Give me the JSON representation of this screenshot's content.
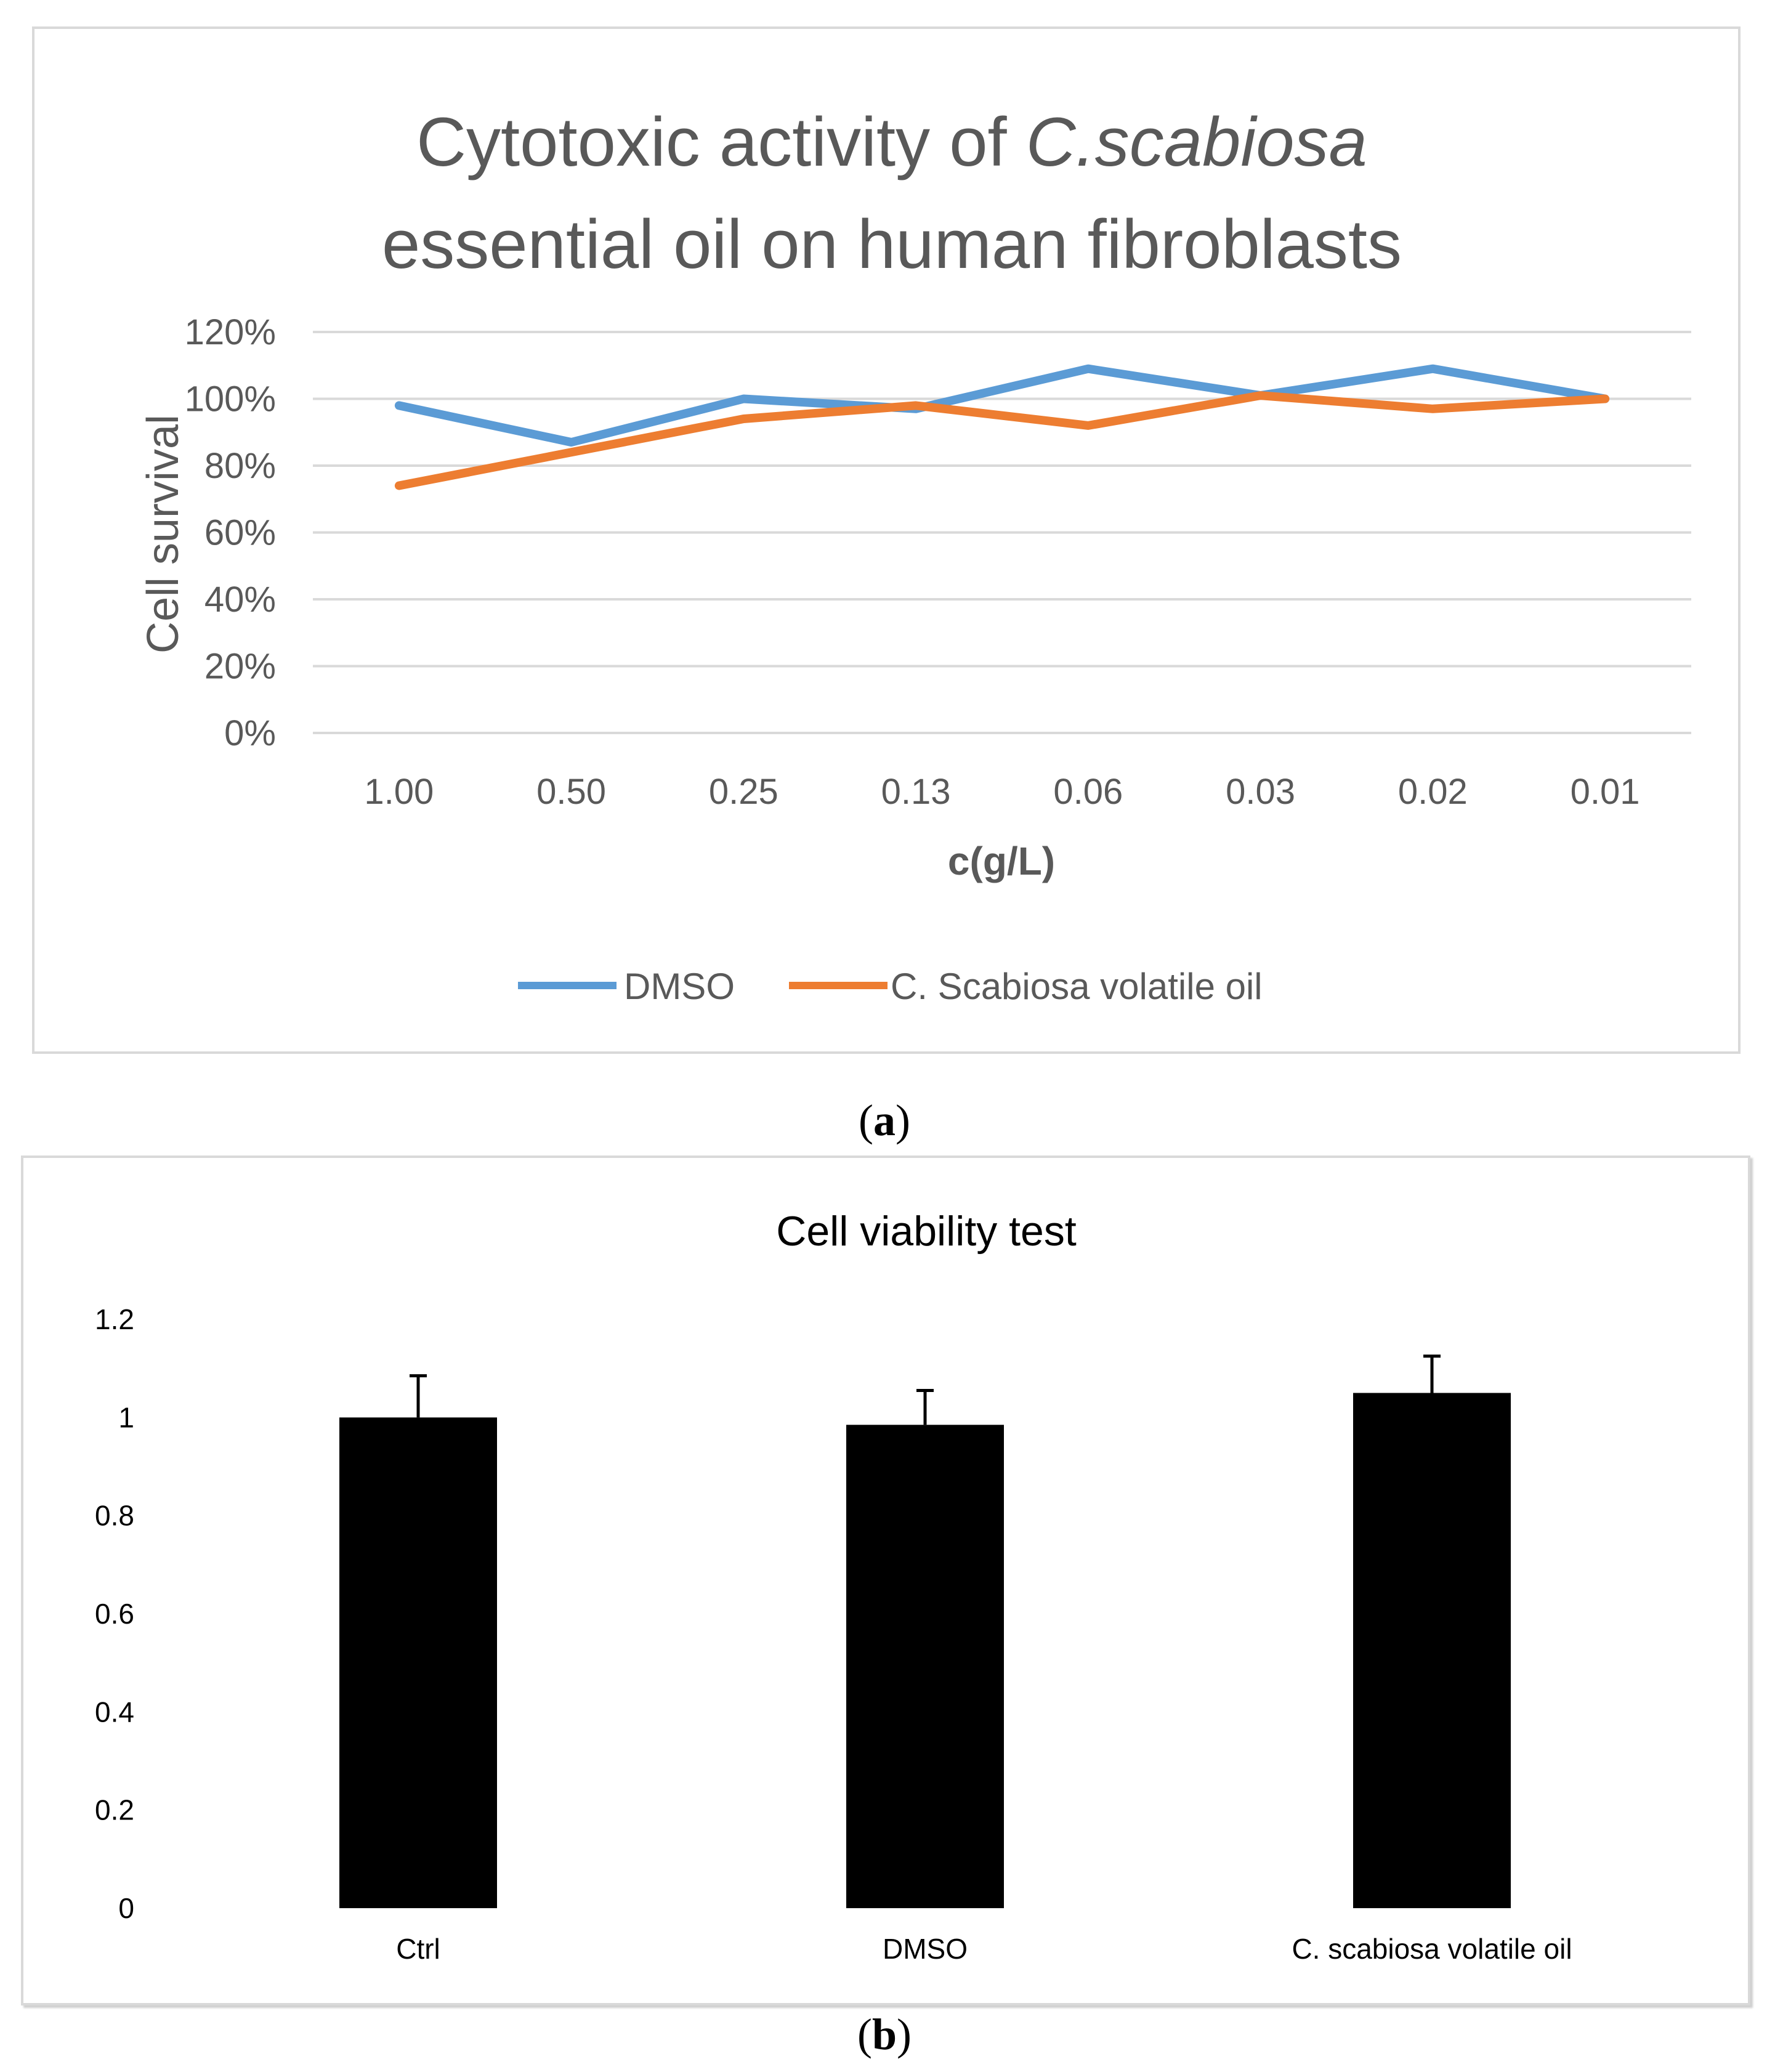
{
  "colors": {
    "dmso_line": "#5b9bd5",
    "oil_line": "#ed7d31",
    "bars": "#000000",
    "gridline": "#d9d9d9",
    "axis_text_a": "#595959",
    "axis_text_b": "#000000"
  },
  "captions": {
    "a_open": "(",
    "a_letter": "a",
    "a_close": ")",
    "b_open": "(",
    "b_letter": "b",
    "b_close": ")"
  },
  "chart_data": [
    {
      "type": "line",
      "title_line1_prefix": "Cytotoxic activity of ",
      "title_line1_italic": "C.scabiosa",
      "title_line2": "essential oil on human fibroblasts",
      "xlabel": "c(g/L)",
      "ylabel": "Cell survival",
      "categories": [
        "1.00",
        "0.50",
        "0.25",
        "0.13",
        "0.06",
        "0.03",
        "0.02",
        "0.01"
      ],
      "yticks": [
        "0%",
        "20%",
        "40%",
        "60%",
        "80%",
        "100%",
        "120%"
      ],
      "ylim": [
        0,
        120
      ],
      "grid": true,
      "legend": "bottom",
      "series": [
        {
          "name": "DMSO",
          "color": "#5b9bd5",
          "values": [
            98,
            87,
            100,
            97,
            109,
            101,
            109,
            100
          ]
        },
        {
          "name": "C. Scabiosa volatile oil",
          "color": "#ed7d31",
          "values": [
            74,
            84,
            94,
            98,
            92,
            101,
            97,
            100
          ]
        }
      ]
    },
    {
      "type": "bar",
      "title": "Cell viability test",
      "categories": [
        "Ctrl",
        "DMSO",
        "C. scabiosa volatile oil"
      ],
      "values": [
        1.0,
        0.985,
        1.05
      ],
      "error_plus": [
        0.085,
        0.07,
        0.075
      ],
      "yticks": [
        "0",
        "0.2",
        "0.4",
        "0.6",
        "0.8",
        "1",
        "1.2"
      ],
      "ylim": [
        0,
        1.2
      ],
      "grid": false,
      "legend": "none"
    }
  ]
}
